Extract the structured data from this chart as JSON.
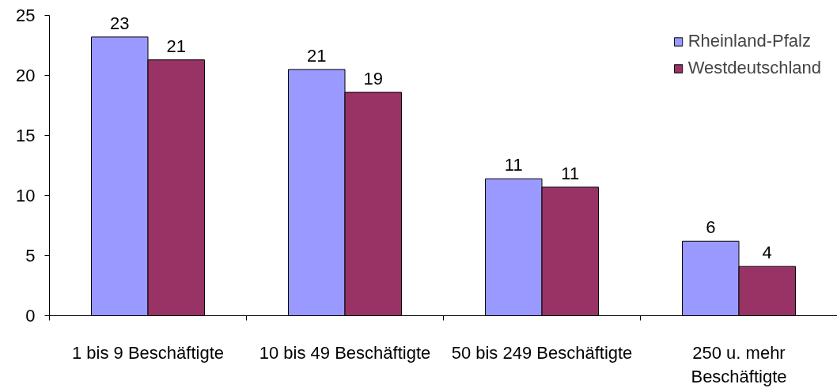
{
  "chart_data": {
    "type": "bar",
    "categories": [
      "1 bis 9 Beschäftigte",
      "10 bis 49 Beschäftigte",
      "50 bis 249 Beschäftigte",
      "250 u. mehr\nBeschäftigte"
    ],
    "series": [
      {
        "name": "Rheinland-Pfalz",
        "color": "#9999ff",
        "values": [
          23.2,
          20.5,
          11.4,
          6.2
        ],
        "value_labels": [
          "23",
          "21",
          "11",
          "6"
        ]
      },
      {
        "name": "Westdeutschland",
        "color": "#993366",
        "values": [
          21.3,
          18.6,
          10.7,
          4.1
        ],
        "value_labels": [
          "21",
          "19",
          "11",
          "4"
        ]
      }
    ],
    "ylim": [
      0,
      25
    ],
    "yticks": [
      0,
      5,
      10,
      15,
      20,
      25
    ],
    "legend": "top right"
  }
}
